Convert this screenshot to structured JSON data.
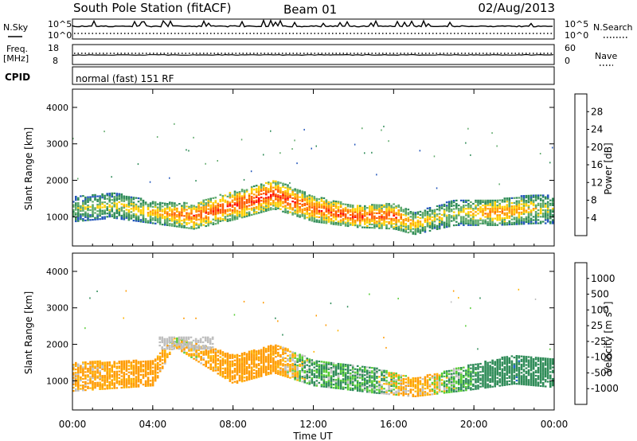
{
  "header": {
    "title": "South Pole Station (fitACF)",
    "beam": "Beam 01",
    "date": "02/Aug/2013"
  },
  "strip_labels": {
    "n_sky": "N.Sky",
    "n_search": "N.Search",
    "freq_line1": "Freq.",
    "freq_line2": "[MHz]",
    "nave": "Nave",
    "cpid": "CPID",
    "cpid_text": "normal (fast) 151 RF"
  },
  "strip_ticks": {
    "noise_top": "10^5",
    "noise_bottom": "10^0",
    "freq_top": "18",
    "freq_bottom": "8",
    "nave_top": "60",
    "nave_bottom": "0"
  },
  "colors": {
    "power_scale": [
      "#0000ff",
      "#2255bb",
      "#2e8b57",
      "#5faa6a",
      "#ffd000",
      "#ff9a00",
      "#ff5a00",
      "#ff0000"
    ],
    "velocity_scale": [
      "#ff0000",
      "#ff5a00",
      "#ff9a00",
      "#ffb300",
      "#bebebe",
      "#55cc33",
      "#2e8b57",
      "#2266cc",
      "#0000ff"
    ]
  },
  "chart_data": [
    {
      "type": "heatmap",
      "panel": "power",
      "ylabel": "Slant Range [km]",
      "xlabel": "",
      "ylim": [
        200,
        4500
      ],
      "xlim": [
        "00:00",
        "24:00"
      ],
      "y_ticks": [
        "1000",
        "2000",
        "3000",
        "4000"
      ],
      "colorbar": {
        "label": "Power [dB]",
        "ticks": [
          "4",
          "8",
          "12",
          "16",
          "20",
          "24",
          "28"
        ],
        "range": [
          0,
          32
        ]
      },
      "echo_band": [
        {
          "hour": 0,
          "center_km": 1200,
          "width_km": 700,
          "power_db": 14
        },
        {
          "hour": 2,
          "center_km": 1300,
          "width_km": 700,
          "power_db": 16
        },
        {
          "hour": 4,
          "center_km": 1100,
          "width_km": 600,
          "power_db": 20
        },
        {
          "hour": 6,
          "center_km": 1000,
          "width_km": 700,
          "power_db": 26
        },
        {
          "hour": 8,
          "center_km": 1300,
          "width_km": 800,
          "power_db": 27
        },
        {
          "hour": 10,
          "center_km": 1600,
          "width_km": 800,
          "power_db": 28
        },
        {
          "hour": 12,
          "center_km": 1200,
          "width_km": 700,
          "power_db": 26
        },
        {
          "hour": 14,
          "center_km": 1000,
          "width_km": 600,
          "power_db": 27
        },
        {
          "hour": 16,
          "center_km": 1000,
          "width_km": 700,
          "power_db": 26
        },
        {
          "hour": 17,
          "center_km": 800,
          "width_km": 600,
          "power_db": 20
        },
        {
          "hour": 19,
          "center_km": 1100,
          "width_km": 700,
          "power_db": 16
        },
        {
          "hour": 21,
          "center_km": 1100,
          "width_km": 700,
          "power_db": 24
        },
        {
          "hour": 23,
          "center_km": 1200,
          "width_km": 800,
          "power_db": 18
        },
        {
          "hour": 24,
          "center_km": 1200,
          "width_km": 800,
          "power_db": 14
        }
      ]
    },
    {
      "type": "heatmap",
      "panel": "velocity",
      "ylabel": "Slant Range [km]",
      "xlabel": "Time UT",
      "ylim": [
        200,
        4500
      ],
      "xlim": [
        "00:00",
        "24:00"
      ],
      "x_ticks": [
        "00:00",
        "04:00",
        "08:00",
        "12:00",
        "16:00",
        "20:00",
        "00:00"
      ],
      "y_ticks": [
        "1000",
        "2000",
        "3000",
        "4000"
      ],
      "colorbar": {
        "label": "Velocity [m s^-1]",
        "ticks": [
          "-1000",
          "-500",
          "-100",
          "-25",
          "25",
          "100",
          "500",
          "1000"
        ]
      },
      "echo_band": [
        {
          "hour": 0,
          "center_km": 1100,
          "width_km": 800,
          "velocity": -100
        },
        {
          "hour": 4,
          "center_km": 1200,
          "width_km": 700,
          "velocity": -200
        },
        {
          "hour": 5,
          "center_km": 2050,
          "width_km": 250,
          "velocity": 0
        },
        {
          "hour": 8,
          "center_km": 1300,
          "width_km": 800,
          "velocity": -200
        },
        {
          "hour": 10,
          "center_km": 1600,
          "width_km": 800,
          "velocity": -200
        },
        {
          "hour": 12,
          "center_km": 1200,
          "width_km": 700,
          "velocity": 150
        },
        {
          "hour": 15,
          "center_km": 1000,
          "width_km": 700,
          "velocity": 100
        },
        {
          "hour": 17,
          "center_km": 800,
          "width_km": 500,
          "velocity": -150
        },
        {
          "hour": 20,
          "center_km": 1100,
          "width_km": 700,
          "velocity": 200
        },
        {
          "hour": 22,
          "center_km": 1300,
          "width_km": 800,
          "velocity": 400
        },
        {
          "hour": 24,
          "center_km": 1200,
          "width_km": 800,
          "velocity": 200
        }
      ]
    }
  ]
}
